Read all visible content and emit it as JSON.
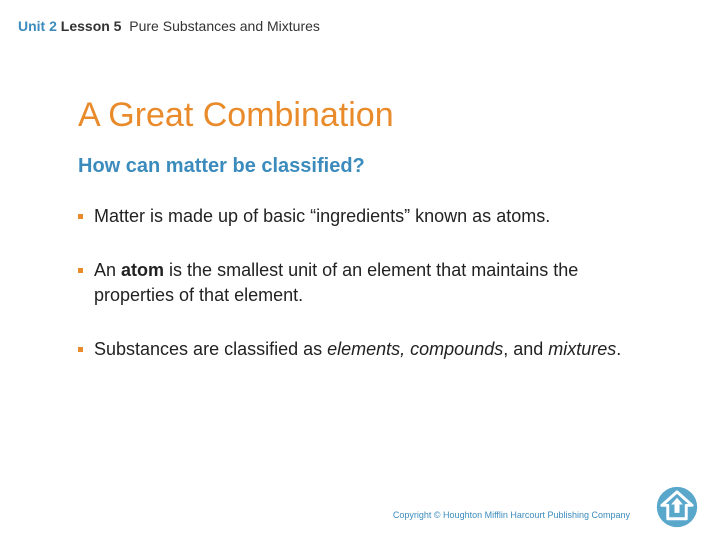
{
  "header": {
    "unit": "Unit 2",
    "lesson": "Lesson 5",
    "topic": "Pure Substances and Mixtures"
  },
  "title": "A Great Combination",
  "subtitle": "How can matter be classified?",
  "bullets": [
    {
      "html": "Matter is made up of basic “ingredients” known as atoms."
    },
    {
      "html": "An <span class=\"b\">atom</span> is the smallest unit of an element that maintains the properties of that element."
    },
    {
      "html": "Substances are classified as <span class=\"i\">elements, compounds</span>, and <span class=\"i\">mixtures</span>."
    }
  ],
  "copyright": "Copyright © Houghton Mifflin Harcourt Publishing Company",
  "colors": {
    "accent_orange": "#e98a2b",
    "accent_blue": "#3b8bbd",
    "icon_blue": "#5aa7cc",
    "icon_arrow": "#ffffff",
    "text": "#222222",
    "background": "#ffffff"
  },
  "fonts": {
    "body_family": "Verdana",
    "title_size_pt": 26,
    "subtitle_size_pt": 15,
    "body_size_pt": 14,
    "header_size_pt": 11,
    "copyright_size_pt": 7
  }
}
